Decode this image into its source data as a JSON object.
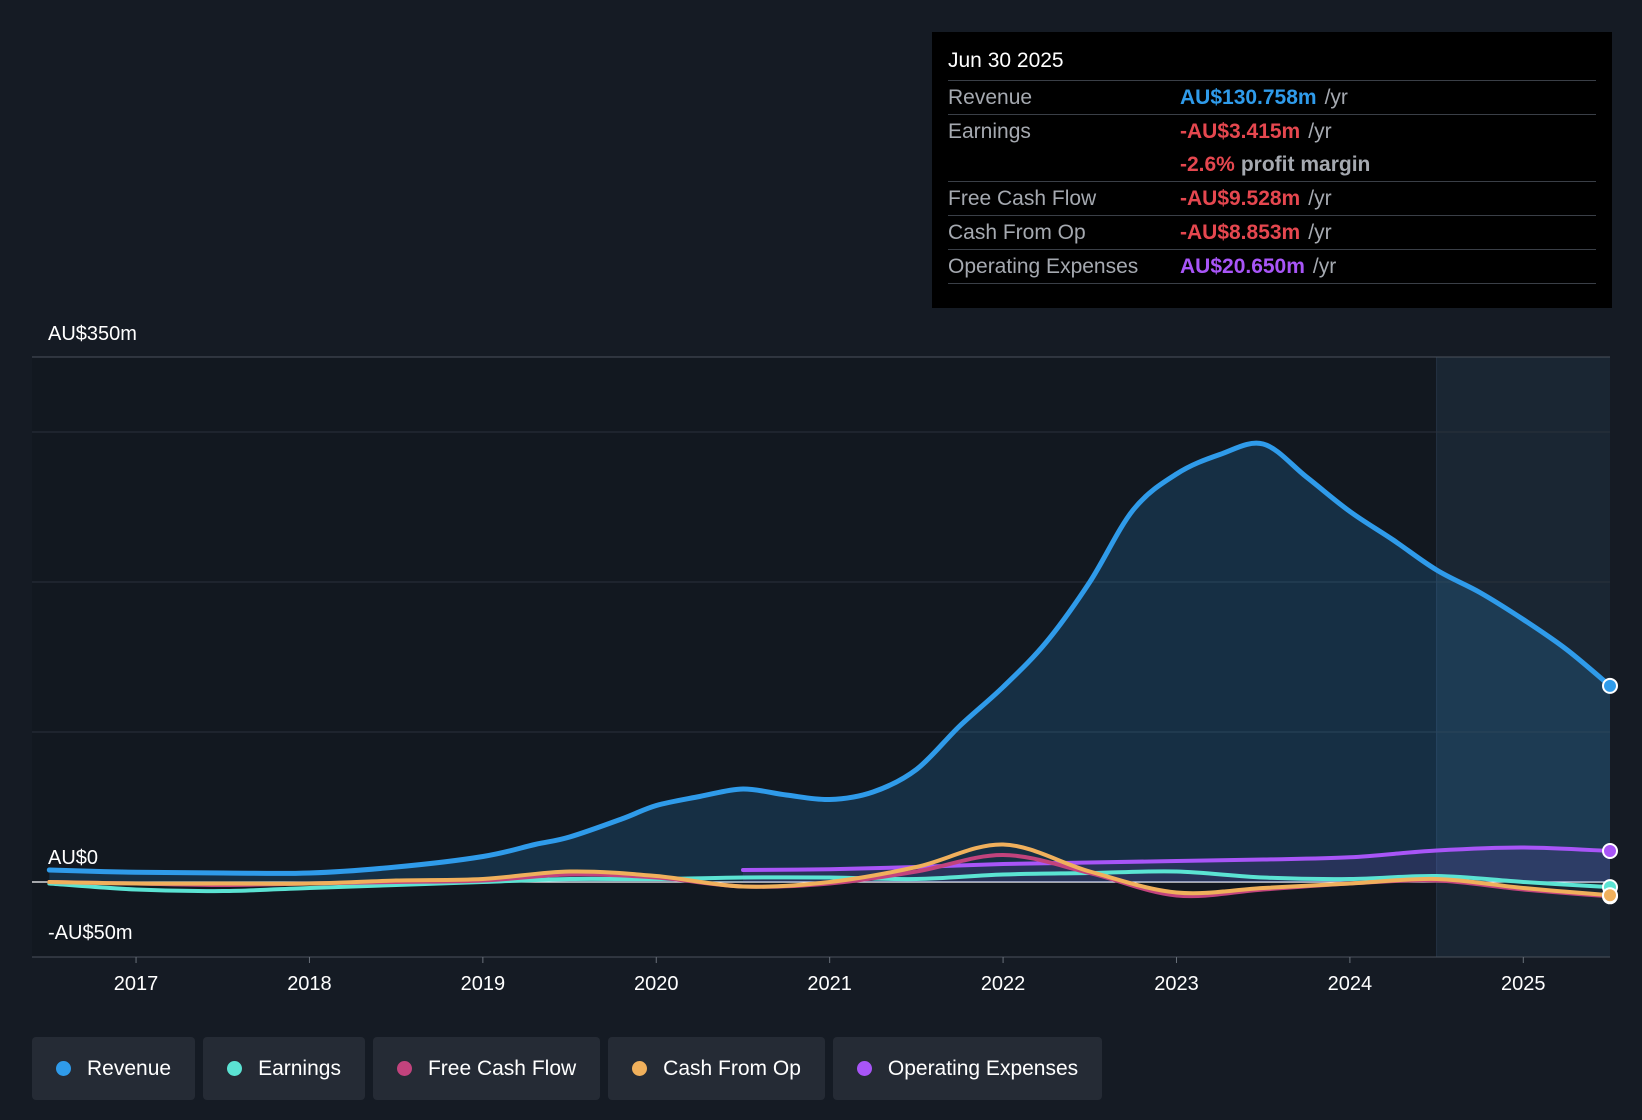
{
  "chart_data": {
    "type": "line",
    "title": "",
    "y_unit_labels": {
      "top": "AU$350m",
      "zero": "AU$0",
      "bottom": "-AU$50m"
    },
    "ylim": [
      -50,
      350
    ],
    "xlim": [
      2016.4,
      2025.5
    ],
    "x_ticks": [
      2017,
      2018,
      2019,
      2020,
      2021,
      2022,
      2023,
      2024,
      2025
    ],
    "x_tick_labels": [
      "2017",
      "2018",
      "2019",
      "2020",
      "2021",
      "2022",
      "2023",
      "2024",
      "2025"
    ],
    "forecast_start": 2024.5,
    "series": [
      {
        "name": "Revenue",
        "color": "#2f9bea",
        "filled": true,
        "points": [
          [
            2016.5,
            8
          ],
          [
            2017.0,
            6.5
          ],
          [
            2017.5,
            6
          ],
          [
            2018.0,
            6
          ],
          [
            2018.5,
            10
          ],
          [
            2019.0,
            17
          ],
          [
            2019.3,
            25
          ],
          [
            2019.5,
            30
          ],
          [
            2019.8,
            42
          ],
          [
            2020.0,
            51
          ],
          [
            2020.25,
            57
          ],
          [
            2020.5,
            62
          ],
          [
            2020.75,
            58
          ],
          [
            2021.0,
            55
          ],
          [
            2021.25,
            60
          ],
          [
            2021.5,
            75
          ],
          [
            2021.75,
            104
          ],
          [
            2022.0,
            130
          ],
          [
            2022.25,
            160
          ],
          [
            2022.5,
            200
          ],
          [
            2022.75,
            248
          ],
          [
            2023.0,
            272
          ],
          [
            2023.25,
            285
          ],
          [
            2023.5,
            292
          ],
          [
            2023.75,
            270
          ],
          [
            2024.0,
            247
          ],
          [
            2024.25,
            228
          ],
          [
            2024.5,
            208
          ],
          [
            2024.75,
            193
          ],
          [
            2025.0,
            175
          ],
          [
            2025.25,
            155
          ],
          [
            2025.5,
            130.758
          ]
        ]
      },
      {
        "name": "Earnings",
        "color": "#5be3d3",
        "filled": false,
        "points": [
          [
            2016.5,
            -1
          ],
          [
            2017.0,
            -5
          ],
          [
            2017.5,
            -6
          ],
          [
            2018.0,
            -4
          ],
          [
            2018.5,
            -2
          ],
          [
            2019.0,
            0
          ],
          [
            2019.5,
            2
          ],
          [
            2020.0,
            2
          ],
          [
            2020.5,
            3
          ],
          [
            2021.0,
            3
          ],
          [
            2021.5,
            2
          ],
          [
            2022.0,
            5
          ],
          [
            2022.5,
            6
          ],
          [
            2023.0,
            7
          ],
          [
            2023.5,
            3
          ],
          [
            2024.0,
            2
          ],
          [
            2024.5,
            4
          ],
          [
            2025.0,
            0
          ],
          [
            2025.5,
            -3.415
          ]
        ]
      },
      {
        "name": "Free Cash Flow",
        "color": "#c2437d",
        "filled": false,
        "points": [
          [
            2016.5,
            0
          ],
          [
            2017.0,
            -1
          ],
          [
            2017.5,
            -2
          ],
          [
            2018.0,
            -1
          ],
          [
            2018.5,
            0
          ],
          [
            2019.0,
            1
          ],
          [
            2019.5,
            5
          ],
          [
            2020.0,
            3
          ],
          [
            2020.5,
            -3
          ],
          [
            2021.0,
            -1
          ],
          [
            2021.5,
            7
          ],
          [
            2022.0,
            18
          ],
          [
            2022.5,
            6
          ],
          [
            2023.0,
            -9
          ],
          [
            2023.5,
            -5
          ],
          [
            2024.0,
            -1
          ],
          [
            2024.5,
            1
          ],
          [
            2025.0,
            -5
          ],
          [
            2025.5,
            -9.528
          ]
        ]
      },
      {
        "name": "Cash From Op",
        "color": "#f0b05c",
        "filled": false,
        "points": [
          [
            2016.5,
            0
          ],
          [
            2017.0,
            -1
          ],
          [
            2017.5,
            -1
          ],
          [
            2018.0,
            -1
          ],
          [
            2018.5,
            1
          ],
          [
            2019.0,
            2
          ],
          [
            2019.5,
            7
          ],
          [
            2020.0,
            4
          ],
          [
            2020.5,
            -3
          ],
          [
            2021.0,
            0
          ],
          [
            2021.5,
            10
          ],
          [
            2022.0,
            25
          ],
          [
            2022.5,
            7
          ],
          [
            2023.0,
            -7
          ],
          [
            2023.5,
            -4
          ],
          [
            2024.0,
            -1
          ],
          [
            2024.5,
            2
          ],
          [
            2025.0,
            -4
          ],
          [
            2025.5,
            -8.853
          ]
        ]
      },
      {
        "name": "Operating Expenses",
        "color": "#a855f7",
        "filled": false,
        "points": [
          [
            2020.5,
            8
          ],
          [
            2021.0,
            8.5
          ],
          [
            2021.5,
            10
          ],
          [
            2022.0,
            12
          ],
          [
            2022.5,
            13
          ],
          [
            2023.0,
            14
          ],
          [
            2023.5,
            15
          ],
          [
            2024.0,
            16.5
          ],
          [
            2024.5,
            21
          ],
          [
            2025.0,
            23
          ],
          [
            2025.5,
            20.65
          ]
        ]
      }
    ]
  },
  "tooltip": {
    "date": "Jun 30 2025",
    "rows": [
      {
        "label": "Revenue",
        "value": "AU$130.758m",
        "unit": "/yr",
        "color": "#2f9bea"
      },
      {
        "label": "Earnings",
        "value": "-AU$3.415m",
        "unit": "/yr",
        "color": "#e5474f"
      },
      {
        "label": "",
        "value": "-2.6%",
        "unit": "profit margin",
        "color": "#e5474f"
      },
      {
        "label": "Free Cash Flow",
        "value": "-AU$9.528m",
        "unit": "/yr",
        "color": "#e5474f"
      },
      {
        "label": "Cash From Op",
        "value": "-AU$8.853m",
        "unit": "/yr",
        "color": "#e5474f"
      },
      {
        "label": "Operating Expenses",
        "value": "AU$20.650m",
        "unit": "/yr",
        "color": "#a855f7"
      }
    ]
  },
  "legend": [
    {
      "label": "Revenue",
      "color": "#2f9bea"
    },
    {
      "label": "Earnings",
      "color": "#5be3d3"
    },
    {
      "label": "Free Cash Flow",
      "color": "#c2437d"
    },
    {
      "label": "Cash From Op",
      "color": "#f0b05c"
    },
    {
      "label": "Operating Expenses",
      "color": "#a855f7"
    }
  ]
}
